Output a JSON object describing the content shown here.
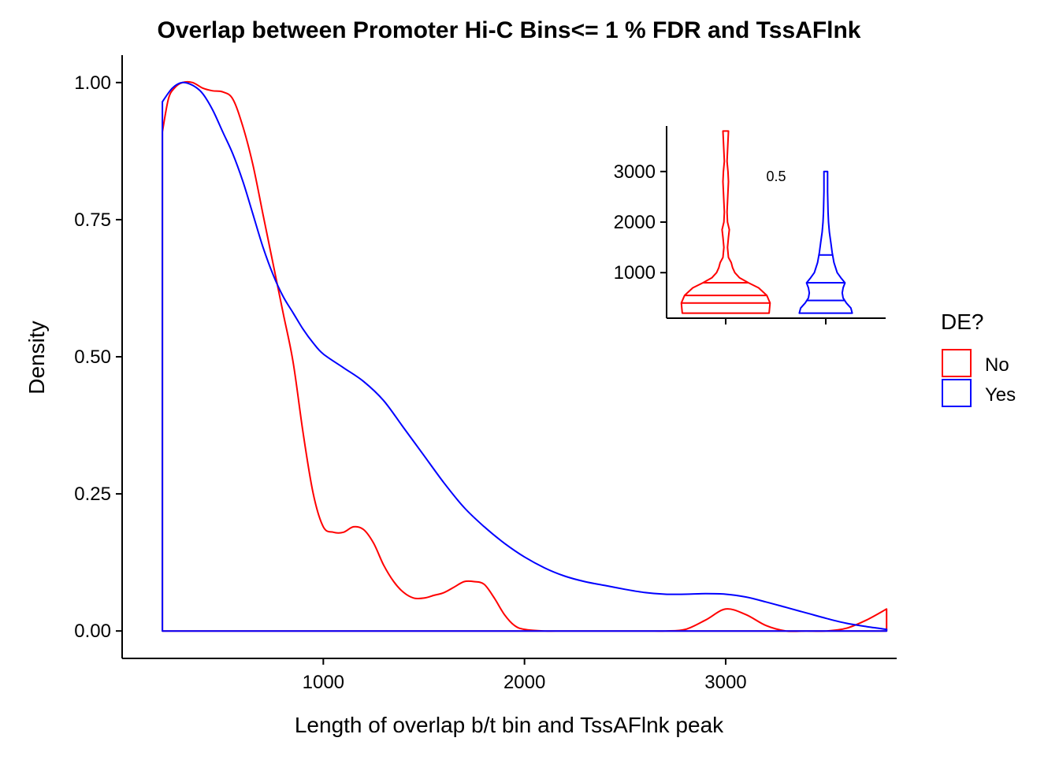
{
  "chart_data": [
    {
      "type": "area",
      "title": "Overlap between Promoter Hi-C Bins<= 1 % FDR and TssAFlnk",
      "xlabel": "Length of overlap b/t bin and TssAFlnk peak",
      "ylabel": "Density",
      "xlim": [
        0,
        3850
      ],
      "ylim": [
        -0.05,
        1.05
      ],
      "x_ticks": [
        1000,
        2000,
        3000
      ],
      "x_tick_labels": [
        "1000",
        "2000",
        "3000"
      ],
      "y_ticks": [
        0,
        0.25,
        0.5,
        0.75,
        1.0
      ],
      "y_tick_labels": [
        "0.00",
        "0.25",
        "0.50",
        "0.75",
        "1.00"
      ],
      "grid": false,
      "legend": {
        "title": "DE?",
        "position": "right",
        "entries": [
          {
            "label": "No",
            "color": "#ff0000"
          },
          {
            "label": "Yes",
            "color": "#0000ff"
          }
        ]
      },
      "series": [
        {
          "name": "No",
          "color": "#ff0000",
          "x": [
            200,
            230,
            260,
            300,
            350,
            400,
            450,
            500,
            550,
            600,
            650,
            700,
            750,
            800,
            850,
            900,
            950,
            1000,
            1050,
            1100,
            1150,
            1200,
            1250,
            1300,
            1350,
            1400,
            1450,
            1500,
            1550,
            1600,
            1650,
            1700,
            1750,
            1800,
            1850,
            1900,
            1950,
            2000,
            2100,
            2200,
            2400,
            2600,
            2700,
            2800,
            2900,
            3000,
            3100,
            3200,
            3300,
            3400,
            3500,
            3600,
            3700,
            3800
          ],
          "y": [
            0.91,
            0.97,
            0.99,
            1.0,
            1.0,
            0.99,
            0.985,
            0.983,
            0.97,
            0.92,
            0.85,
            0.76,
            0.67,
            0.58,
            0.49,
            0.36,
            0.25,
            0.19,
            0.18,
            0.18,
            0.19,
            0.185,
            0.16,
            0.12,
            0.09,
            0.07,
            0.06,
            0.06,
            0.065,
            0.07,
            0.08,
            0.09,
            0.09,
            0.085,
            0.06,
            0.03,
            0.01,
            0.003,
            0.0,
            0.0,
            0.0,
            0.0,
            0.0,
            0.003,
            0.02,
            0.04,
            0.03,
            0.01,
            0.0,
            0.0,
            0.0,
            0.005,
            0.02,
            0.04
          ]
        },
        {
          "name": "Yes",
          "color": "#0000ff",
          "x": [
            200,
            250,
            300,
            350,
            400,
            450,
            500,
            550,
            600,
            650,
            700,
            750,
            800,
            850,
            900,
            950,
            1000,
            1100,
            1200,
            1300,
            1400,
            1500,
            1600,
            1700,
            1800,
            1900,
            2000,
            2100,
            2200,
            2300,
            2400,
            2500,
            2600,
            2700,
            2800,
            2900,
            3000,
            3100,
            3200,
            3300,
            3400,
            3500,
            3600,
            3700,
            3800
          ],
          "y": [
            0.965,
            0.99,
            1.0,
            0.995,
            0.98,
            0.95,
            0.91,
            0.87,
            0.82,
            0.76,
            0.7,
            0.65,
            0.61,
            0.58,
            0.55,
            0.525,
            0.505,
            0.48,
            0.455,
            0.42,
            0.37,
            0.32,
            0.27,
            0.225,
            0.19,
            0.16,
            0.135,
            0.115,
            0.1,
            0.09,
            0.083,
            0.076,
            0.07,
            0.067,
            0.067,
            0.068,
            0.067,
            0.062,
            0.053,
            0.043,
            0.033,
            0.023,
            0.014,
            0.008,
            0.003
          ]
        }
      ]
    },
    {
      "type": "violin",
      "ylim": [
        100,
        3900
      ],
      "y_ticks": [
        1000,
        2000,
        3000
      ],
      "y_tick_labels": [
        "1000",
        "2000",
        "3000"
      ],
      "annotation": "0.5",
      "series": [
        {
          "name": "No",
          "color": "#ff0000",
          "quantiles": [
            400,
            550,
            800
          ],
          "profile_y": [
            200,
            400,
            550,
            700,
            800,
            900,
            1000,
            1100,
            1200,
            1300,
            1500,
            1700,
            1850,
            2000,
            2200,
            2400,
            2600,
            2800,
            3000,
            3200,
            3400,
            3600,
            3800
          ],
          "profile_halfwidth": [
            0.95,
            0.97,
            0.9,
            0.72,
            0.5,
            0.3,
            0.2,
            0.15,
            0.12,
            0.06,
            0.04,
            0.06,
            0.08,
            0.04,
            0.03,
            0.04,
            0.05,
            0.06,
            0.05,
            0.03,
            0.04,
            0.05,
            0.06
          ]
        },
        {
          "name": "Yes",
          "color": "#0000ff",
          "quantiles": [
            450,
            800,
            1350
          ],
          "profile_y": [
            200,
            300,
            400,
            500,
            600,
            700,
            800,
            900,
            1000,
            1200,
            1400,
            1600,
            1800,
            2000,
            2200,
            2400,
            2600,
            2800,
            3000
          ],
          "profile_halfwidth": [
            0.58,
            0.55,
            0.45,
            0.38,
            0.36,
            0.38,
            0.42,
            0.33,
            0.25,
            0.18,
            0.14,
            0.11,
            0.08,
            0.06,
            0.05,
            0.045,
            0.04,
            0.04,
            0.04
          ]
        }
      ]
    }
  ]
}
